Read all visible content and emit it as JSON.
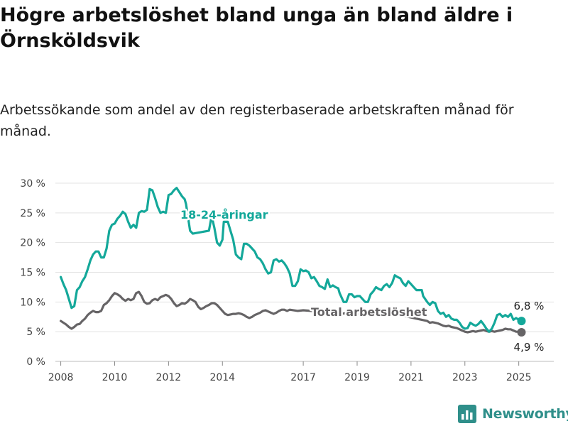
{
  "title": "Högre arbetslöshet bland unga än bland äldre i Örnsköldsvik",
  "subtitle": "Arbetssökande som andel av den registerbaserade arbetskraften månad för månad.",
  "brand": {
    "name": "Newsworthy",
    "color": "#2f8f8a"
  },
  "chart_data": {
    "type": "line",
    "xlim": [
      2007.8,
      2026.3
    ],
    "ylim": [
      0,
      30
    ],
    "y_ticks": [
      0,
      5,
      10,
      15,
      20,
      25,
      30
    ],
    "y_tick_labels": [
      "0 %",
      "5 %",
      "10 %",
      "15 %",
      "20 %",
      "25 %",
      "30 %"
    ],
    "x_ticks": [
      2008,
      2010,
      2012,
      2014,
      2017,
      2019,
      2021,
      2023,
      2025
    ],
    "x_tick_labels": [
      "2008",
      "2010",
      "2012",
      "2014",
      "2017",
      "2019",
      "2021",
      "2023",
      "2025"
    ],
    "grid": true,
    "series": [
      {
        "name": "18-24-åringar",
        "color": "#14a89a",
        "end_label": "6,8 %",
        "points": [
          [
            2008.0,
            14.2
          ],
          [
            2008.1,
            13.0
          ],
          [
            2008.2,
            12.0
          ],
          [
            2008.3,
            10.5
          ],
          [
            2008.4,
            9.0
          ],
          [
            2008.5,
            9.3
          ],
          [
            2008.6,
            12.0
          ],
          [
            2008.7,
            12.5
          ],
          [
            2008.8,
            13.5
          ],
          [
            2008.9,
            14.2
          ],
          [
            2009.0,
            15.5
          ],
          [
            2009.1,
            17.0
          ],
          [
            2009.2,
            18.0
          ],
          [
            2009.3,
            18.5
          ],
          [
            2009.4,
            18.5
          ],
          [
            2009.5,
            17.5
          ],
          [
            2009.6,
            17.5
          ],
          [
            2009.7,
            19.0
          ],
          [
            2009.8,
            22.0
          ],
          [
            2009.9,
            23.0
          ],
          [
            2010.0,
            23.2
          ],
          [
            2010.1,
            24.0
          ],
          [
            2010.2,
            24.5
          ],
          [
            2010.3,
            25.2
          ],
          [
            2010.4,
            24.8
          ],
          [
            2010.5,
            23.5
          ],
          [
            2010.6,
            22.5
          ],
          [
            2010.7,
            23.0
          ],
          [
            2010.8,
            22.5
          ],
          [
            2010.9,
            25.0
          ],
          [
            2011.0,
            25.3
          ],
          [
            2011.1,
            25.2
          ],
          [
            2011.2,
            25.5
          ],
          [
            2011.3,
            29.0
          ],
          [
            2011.4,
            28.8
          ],
          [
            2011.5,
            27.5
          ],
          [
            2011.6,
            26.0
          ],
          [
            2011.7,
            25.0
          ],
          [
            2011.8,
            25.2
          ],
          [
            2011.9,
            25.0
          ],
          [
            2012.0,
            28.0
          ],
          [
            2012.1,
            28.2
          ],
          [
            2012.2,
            28.8
          ],
          [
            2012.3,
            29.2
          ],
          [
            2012.4,
            28.5
          ],
          [
            2012.5,
            27.8
          ],
          [
            2012.6,
            27.3
          ],
          [
            2012.65,
            26.5
          ],
          [
            2012.8,
            22.0
          ],
          [
            2012.9,
            21.5
          ],
          [
            2013.5,
            22.0
          ],
          [
            2013.6,
            24.5
          ],
          [
            2013.7,
            22.5
          ],
          [
            2013.8,
            20.0
          ],
          [
            2013.9,
            19.5
          ],
          [
            2014.0,
            20.5
          ],
          [
            2014.05,
            23.5
          ],
          [
            2014.2,
            23.5
          ],
          [
            2014.3,
            22.0
          ],
          [
            2014.4,
            20.5
          ],
          [
            2014.5,
            18.0
          ],
          [
            2014.6,
            17.5
          ],
          [
            2014.7,
            17.2
          ],
          [
            2014.8,
            19.8
          ],
          [
            2014.9,
            19.8
          ],
          [
            2015.0,
            19.5
          ],
          [
            2015.1,
            19.0
          ],
          [
            2015.2,
            18.5
          ],
          [
            2015.3,
            17.5
          ],
          [
            2015.4,
            17.2
          ],
          [
            2015.5,
            16.5
          ],
          [
            2015.6,
            15.5
          ],
          [
            2015.7,
            14.8
          ],
          [
            2015.8,
            15.0
          ],
          [
            2015.9,
            17.0
          ],
          [
            2016.0,
            17.2
          ],
          [
            2016.1,
            16.8
          ],
          [
            2016.2,
            17.0
          ],
          [
            2016.3,
            16.5
          ],
          [
            2016.4,
            15.8
          ],
          [
            2016.5,
            14.8
          ],
          [
            2016.6,
            12.7
          ],
          [
            2016.7,
            12.7
          ],
          [
            2016.8,
            13.5
          ],
          [
            2016.9,
            15.5
          ],
          [
            2017.0,
            15.2
          ],
          [
            2017.1,
            15.3
          ],
          [
            2017.2,
            15.0
          ],
          [
            2017.3,
            14.0
          ],
          [
            2017.4,
            14.2
          ],
          [
            2017.5,
            13.5
          ],
          [
            2017.6,
            12.7
          ],
          [
            2017.7,
            12.5
          ],
          [
            2017.8,
            12.2
          ],
          [
            2017.9,
            13.8
          ],
          [
            2018.0,
            12.5
          ],
          [
            2018.1,
            12.8
          ],
          [
            2018.2,
            12.5
          ],
          [
            2018.3,
            12.3
          ],
          [
            2018.35,
            11.5
          ],
          [
            2018.5,
            10.0
          ],
          [
            2018.6,
            10.0
          ],
          [
            2018.7,
            11.3
          ],
          [
            2018.8,
            11.3
          ],
          [
            2018.9,
            10.8
          ],
          [
            2019.0,
            11.0
          ],
          [
            2019.1,
            11.0
          ],
          [
            2019.2,
            10.5
          ],
          [
            2019.3,
            10.0
          ],
          [
            2019.4,
            10.0
          ],
          [
            2019.5,
            11.3
          ],
          [
            2019.6,
            11.8
          ],
          [
            2019.7,
            12.5
          ],
          [
            2019.8,
            12.2
          ],
          [
            2019.9,
            12.0
          ],
          [
            2020.0,
            12.7
          ],
          [
            2020.1,
            13.0
          ],
          [
            2020.2,
            12.5
          ],
          [
            2020.3,
            13.2
          ],
          [
            2020.4,
            14.5
          ],
          [
            2020.5,
            14.2
          ],
          [
            2020.6,
            14.0
          ],
          [
            2020.7,
            13.2
          ],
          [
            2020.8,
            12.7
          ],
          [
            2020.9,
            13.5
          ],
          [
            2021.0,
            13.0
          ],
          [
            2021.1,
            12.5
          ],
          [
            2021.2,
            12.0
          ],
          [
            2021.3,
            12.0
          ],
          [
            2021.4,
            12.0
          ],
          [
            2021.45,
            11.0
          ],
          [
            2021.6,
            10.0
          ],
          [
            2021.7,
            9.5
          ],
          [
            2021.8,
            10.0
          ],
          [
            2021.9,
            9.8
          ],
          [
            2022.0,
            8.5
          ],
          [
            2022.1,
            8.0
          ],
          [
            2022.2,
            8.2
          ],
          [
            2022.3,
            7.5
          ],
          [
            2022.4,
            7.8
          ],
          [
            2022.5,
            7.2
          ],
          [
            2022.6,
            7.0
          ],
          [
            2022.7,
            7.0
          ],
          [
            2022.8,
            6.5
          ],
          [
            2022.9,
            5.8
          ],
          [
            2023.0,
            5.5
          ],
          [
            2023.1,
            5.6
          ],
          [
            2023.2,
            6.5
          ],
          [
            2023.3,
            6.2
          ],
          [
            2023.4,
            6.0
          ],
          [
            2023.5,
            6.3
          ],
          [
            2023.6,
            6.8
          ],
          [
            2023.7,
            6.2
          ],
          [
            2023.8,
            5.5
          ],
          [
            2023.9,
            5.0
          ],
          [
            2024.0,
            5.5
          ],
          [
            2024.1,
            6.5
          ],
          [
            2024.2,
            7.8
          ],
          [
            2024.3,
            8.0
          ],
          [
            2024.4,
            7.5
          ],
          [
            2024.5,
            7.8
          ],
          [
            2024.6,
            7.5
          ],
          [
            2024.7,
            8.0
          ],
          [
            2024.8,
            7.0
          ],
          [
            2024.9,
            7.3
          ],
          [
            2025.0,
            7.0
          ],
          [
            2025.1,
            6.8
          ]
        ]
      },
      {
        "name": "Total arbetslöshet",
        "color": "#666466",
        "end_label": "4,9 %",
        "points": [
          [
            2008.0,
            6.8
          ],
          [
            2008.1,
            6.5
          ],
          [
            2008.2,
            6.2
          ],
          [
            2008.3,
            5.8
          ],
          [
            2008.4,
            5.5
          ],
          [
            2008.5,
            5.8
          ],
          [
            2008.6,
            6.2
          ],
          [
            2008.7,
            6.3
          ],
          [
            2008.8,
            6.8
          ],
          [
            2008.9,
            7.2
          ],
          [
            2009.0,
            7.8
          ],
          [
            2009.1,
            8.2
          ],
          [
            2009.2,
            8.5
          ],
          [
            2009.3,
            8.3
          ],
          [
            2009.4,
            8.3
          ],
          [
            2009.5,
            8.5
          ],
          [
            2009.6,
            9.5
          ],
          [
            2009.7,
            9.8
          ],
          [
            2009.8,
            10.3
          ],
          [
            2009.9,
            11.0
          ],
          [
            2010.0,
            11.5
          ],
          [
            2010.1,
            11.3
          ],
          [
            2010.2,
            11.0
          ],
          [
            2010.3,
            10.5
          ],
          [
            2010.4,
            10.2
          ],
          [
            2010.5,
            10.5
          ],
          [
            2010.6,
            10.3
          ],
          [
            2010.7,
            10.5
          ],
          [
            2010.8,
            11.5
          ],
          [
            2010.9,
            11.7
          ],
          [
            2011.0,
            11.0
          ],
          [
            2011.1,
            10.0
          ],
          [
            2011.2,
            9.7
          ],
          [
            2011.3,
            9.8
          ],
          [
            2011.4,
            10.3
          ],
          [
            2011.5,
            10.5
          ],
          [
            2011.6,
            10.3
          ],
          [
            2011.7,
            10.8
          ],
          [
            2011.8,
            11.0
          ],
          [
            2011.9,
            11.2
          ],
          [
            2012.0,
            11.0
          ],
          [
            2012.1,
            10.5
          ],
          [
            2012.2,
            9.8
          ],
          [
            2012.3,
            9.3
          ],
          [
            2012.4,
            9.5
          ],
          [
            2012.5,
            9.8
          ],
          [
            2012.6,
            9.7
          ],
          [
            2012.7,
            10.0
          ],
          [
            2012.8,
            10.5
          ],
          [
            2012.9,
            10.3
          ],
          [
            2013.0,
            10.0
          ],
          [
            2013.1,
            9.2
          ],
          [
            2013.2,
            8.8
          ],
          [
            2013.3,
            9.0
          ],
          [
            2013.4,
            9.3
          ],
          [
            2013.5,
            9.5
          ],
          [
            2013.6,
            9.8
          ],
          [
            2013.7,
            9.8
          ],
          [
            2013.8,
            9.5
          ],
          [
            2013.9,
            9.0
          ],
          [
            2014.0,
            8.5
          ],
          [
            2014.1,
            8.0
          ],
          [
            2014.2,
            7.8
          ],
          [
            2014.3,
            7.9
          ],
          [
            2014.4,
            8.0
          ],
          [
            2014.5,
            8.0
          ],
          [
            2014.6,
            8.1
          ],
          [
            2014.7,
            8.0
          ],
          [
            2014.8,
            7.8
          ],
          [
            2014.9,
            7.5
          ],
          [
            2015.0,
            7.3
          ],
          [
            2015.1,
            7.5
          ],
          [
            2015.2,
            7.8
          ],
          [
            2015.3,
            8.0
          ],
          [
            2015.4,
            8.2
          ],
          [
            2015.5,
            8.5
          ],
          [
            2015.6,
            8.6
          ],
          [
            2015.7,
            8.4
          ],
          [
            2015.8,
            8.2
          ],
          [
            2015.9,
            8.0
          ],
          [
            2016.0,
            8.2
          ],
          [
            2016.1,
            8.5
          ],
          [
            2016.2,
            8.7
          ],
          [
            2016.3,
            8.7
          ],
          [
            2016.4,
            8.5
          ],
          [
            2016.5,
            8.7
          ],
          [
            2016.8,
            8.5
          ],
          [
            2017.0,
            8.6
          ],
          [
            2017.3,
            8.5
          ],
          [
            2017.6,
            8.3
          ],
          [
            2018.0,
            8.2
          ],
          [
            2018.3,
            8.0
          ],
          [
            2018.6,
            8.1
          ],
          [
            2019.0,
            8.0
          ],
          [
            2019.3,
            7.9
          ],
          [
            2019.6,
            8.0
          ],
          [
            2020.0,
            8.2
          ],
          [
            2020.3,
            8.0
          ],
          [
            2020.6,
            7.8
          ],
          [
            2020.9,
            7.5
          ],
          [
            2021.2,
            7.2
          ],
          [
            2021.4,
            7.0
          ],
          [
            2021.6,
            6.8
          ],
          [
            2021.7,
            6.5
          ],
          [
            2021.8,
            6.6
          ],
          [
            2021.9,
            6.5
          ],
          [
            2022.0,
            6.4
          ],
          [
            2022.1,
            6.2
          ],
          [
            2022.2,
            6.0
          ],
          [
            2022.3,
            5.9
          ],
          [
            2022.4,
            6.0
          ],
          [
            2022.5,
            5.8
          ],
          [
            2022.6,
            5.7
          ],
          [
            2022.7,
            5.6
          ],
          [
            2022.8,
            5.4
          ],
          [
            2022.9,
            5.2
          ],
          [
            2023.0,
            5.0
          ],
          [
            2023.1,
            4.9
          ],
          [
            2023.2,
            5.0
          ],
          [
            2023.3,
            5.1
          ],
          [
            2023.4,
            5.0
          ],
          [
            2023.5,
            5.1
          ],
          [
            2023.6,
            5.2
          ],
          [
            2023.7,
            5.3
          ],
          [
            2023.8,
            5.1
          ],
          [
            2023.9,
            5.0
          ],
          [
            2024.0,
            5.1
          ],
          [
            2024.1,
            5.0
          ],
          [
            2024.2,
            5.1
          ],
          [
            2024.3,
            5.2
          ],
          [
            2024.4,
            5.3
          ],
          [
            2024.5,
            5.5
          ],
          [
            2024.6,
            5.4
          ],
          [
            2024.7,
            5.4
          ],
          [
            2024.8,
            5.2
          ],
          [
            2024.9,
            5.0
          ],
          [
            2025.0,
            5.0
          ],
          [
            2025.1,
            4.9
          ]
        ]
      }
    ]
  }
}
